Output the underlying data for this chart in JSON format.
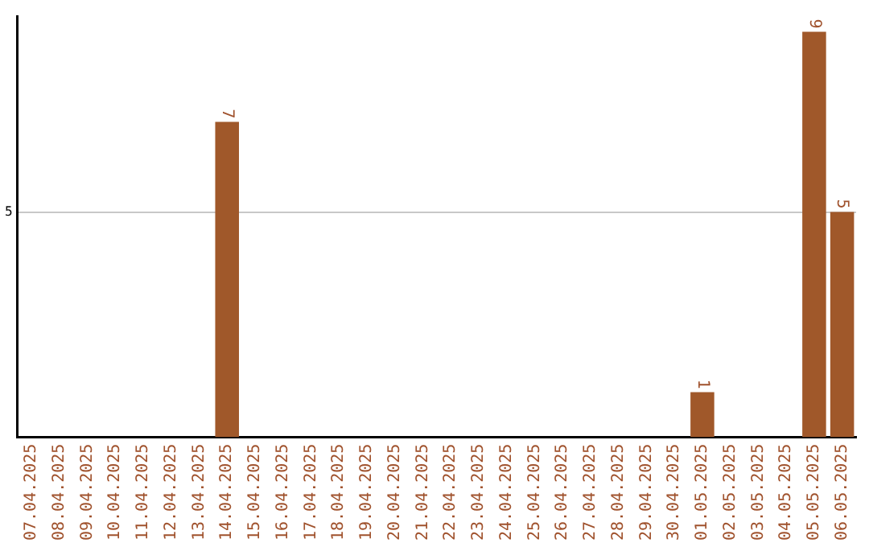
{
  "chart_data": {
    "type": "bar",
    "categories": [
      "07.04.2025",
      "08.04.2025",
      "09.04.2025",
      "10.04.2025",
      "11.04.2025",
      "12.04.2025",
      "13.04.2025",
      "14.04.2025",
      "15.04.2025",
      "16.04.2025",
      "17.04.2025",
      "18.04.2025",
      "19.04.2025",
      "20.04.2025",
      "21.04.2025",
      "22.04.2025",
      "23.04.2025",
      "24.04.2025",
      "25.04.2025",
      "26.04.2025",
      "27.04.2025",
      "28.04.2025",
      "29.04.2025",
      "30.04.2025",
      "01.05.2025",
      "02.05.2025",
      "03.05.2025",
      "04.05.2025",
      "05.05.2025",
      "06.05.2025"
    ],
    "values": [
      0,
      0,
      0,
      0,
      0,
      0,
      0,
      7,
      0,
      0,
      0,
      0,
      0,
      0,
      0,
      0,
      0,
      0,
      0,
      0,
      0,
      0,
      0,
      0,
      1,
      0,
      0,
      0,
      9,
      5
    ],
    "value_labels": [
      null,
      null,
      null,
      null,
      null,
      null,
      null,
      "7",
      null,
      null,
      null,
      null,
      null,
      null,
      null,
      null,
      null,
      null,
      null,
      null,
      null,
      null,
      null,
      null,
      "1",
      null,
      null,
      null,
      "9",
      "5"
    ],
    "color": "#a0582a",
    "ylim": [
      0,
      9.35
    ],
    "yticks": [
      5
    ],
    "grid": "y"
  }
}
